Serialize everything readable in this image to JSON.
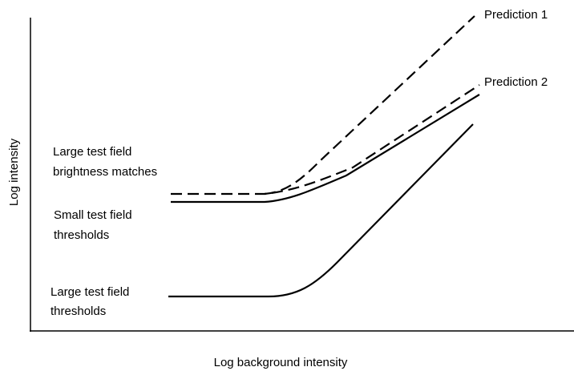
{
  "axes": {
    "y_label": "Log intensity",
    "x_label": "Log background intensity"
  },
  "curve_labels": {
    "prediction_1": "Prediction 1",
    "prediction_2": "Prediction 2",
    "large_brightness": [
      "Large test field",
      "brightness matches"
    ],
    "small_thresholds": [
      "Small test field",
      "thresholds"
    ],
    "large_thresholds": [
      "Large test field",
      "thresholds"
    ]
  }
}
